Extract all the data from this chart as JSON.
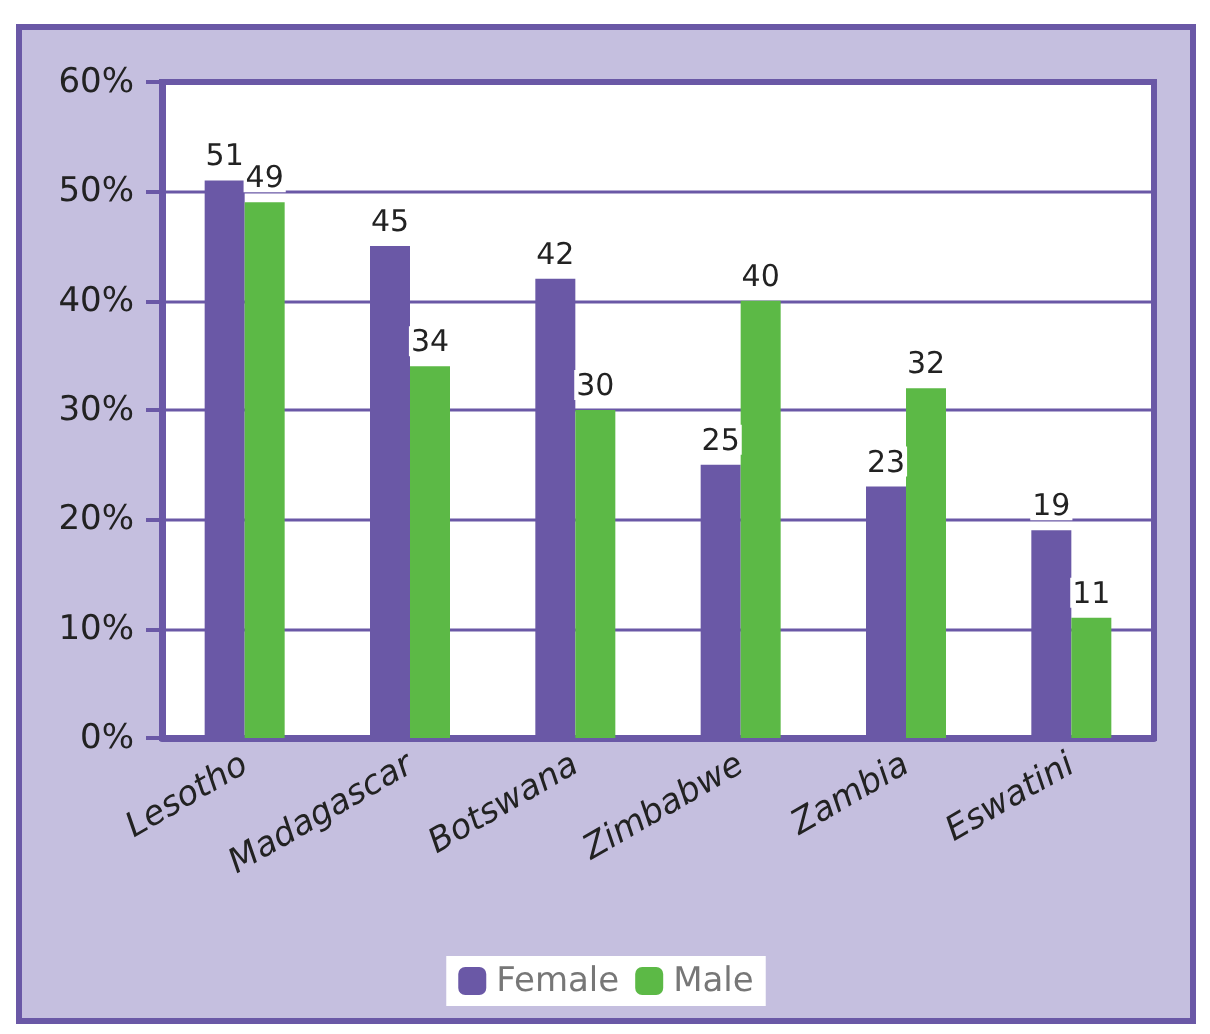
{
  "chart_data": {
    "type": "bar",
    "categories": [
      "Lesotho",
      "Madagascar",
      "Botswana",
      "Zimbabwe",
      "Zambia",
      "Eswatini"
    ],
    "series": [
      {
        "name": "Female",
        "color": "#6a58a6",
        "values": [
          51,
          45,
          42,
          25,
          23,
          19
        ]
      },
      {
        "name": "Male",
        "color": "#5cb946",
        "values": [
          49,
          34,
          30,
          40,
          32,
          11
        ]
      }
    ],
    "ylim": [
      0,
      60
    ],
    "yticks": [
      {
        "value": 0,
        "label": "0%"
      },
      {
        "value": 10,
        "label": "10%"
      },
      {
        "value": 20,
        "label": "20%"
      },
      {
        "value": 30,
        "label": "30%"
      },
      {
        "value": 40,
        "label": "40%"
      },
      {
        "value": 50,
        "label": "50%"
      },
      {
        "value": 60,
        "label": "60%"
      }
    ],
    "grid": "y",
    "legend": "bottom",
    "data_labels": true
  }
}
